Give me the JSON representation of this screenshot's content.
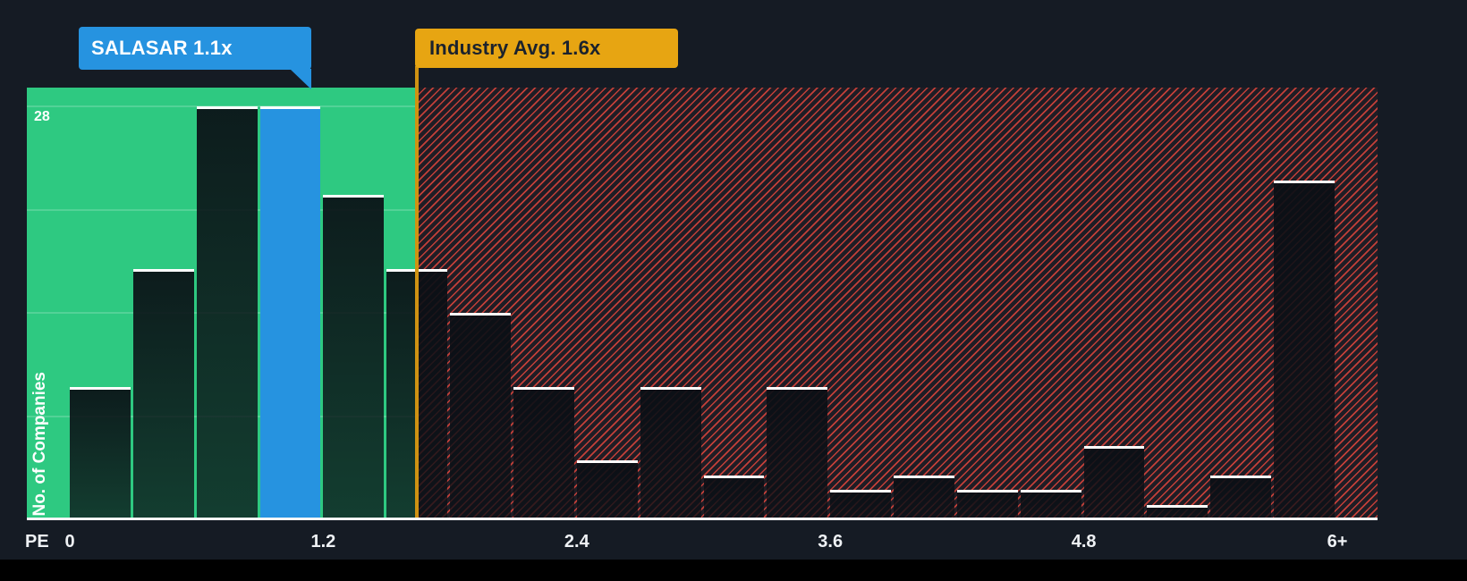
{
  "chart_data": {
    "type": "bar",
    "subtype": "histogram",
    "title": "",
    "x_axis_label": "PE",
    "y_axis_label": "No. of Companies",
    "x_ticks": [
      "0",
      "1.2",
      "2.4",
      "3.6",
      "4.8",
      "6+"
    ],
    "x_tick_values": [
      0,
      1.2,
      2.4,
      3.6,
      4.8,
      6
    ],
    "xlim": [
      0,
      6
    ],
    "ylim": [
      0,
      28
    ],
    "y_max_label": "28",
    "y_gridline_values": [
      7,
      14,
      21,
      28
    ],
    "bin_width": 0.3,
    "values": [
      9,
      17,
      28,
      28,
      22,
      17,
      14,
      9,
      4,
      9,
      3,
      9,
      2,
      3,
      2,
      2,
      5,
      1,
      3,
      23
    ],
    "highlight_index": 3,
    "markers": [
      {
        "name": "company",
        "label": "SALASAR 1.1x",
        "value": 1.1,
        "color": "#2693e0"
      },
      {
        "name": "industry_average",
        "label": "Industry Avg. 1.6x",
        "value": 1.6,
        "color": "#e7a512"
      }
    ],
    "regions": [
      {
        "name": "below_industry_average",
        "from": 0,
        "to": 1.6,
        "style": "solid",
        "color": "#2ec981"
      },
      {
        "name": "above_industry_average",
        "from": 1.6,
        "to": 6,
        "style": "red-hatch",
        "color": "#ec483e"
      }
    ],
    "legend": "none",
    "grid": "horizontal-faint"
  },
  "colors": {
    "background": "#151b24",
    "bottom_bar": "#000000",
    "bar_fill": "rgba(10,15,21,0.9)",
    "bar_cap": "#ffffff",
    "highlight_bar": "#2693e0",
    "industry_line": "#cf9212",
    "axis": "#f4f6f8",
    "text": "#ffffff"
  }
}
